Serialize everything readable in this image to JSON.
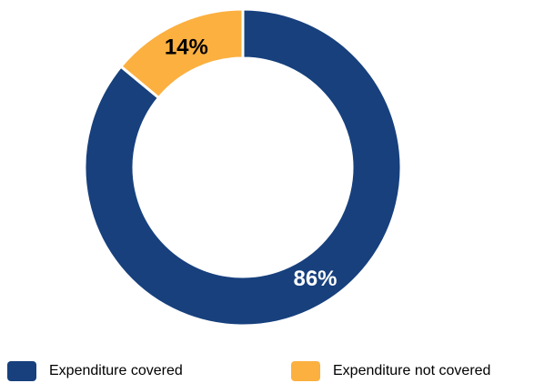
{
  "chart_data": {
    "type": "pie",
    "donut": true,
    "categories": [
      "Expenditure covered",
      "Expenditure not covered"
    ],
    "values": [
      86,
      14
    ],
    "value_labels": [
      "86%",
      "14%"
    ],
    "colors": [
      "#17407d",
      "#fbb040"
    ],
    "label_colors": [
      "#ffffff",
      "#000000"
    ],
    "legend_position": "bottom"
  },
  "legend": {
    "items": [
      {
        "label": "Expenditure covered",
        "color": "#17407d"
      },
      {
        "label": "Expenditure not covered",
        "color": "#fbb040"
      }
    ]
  }
}
